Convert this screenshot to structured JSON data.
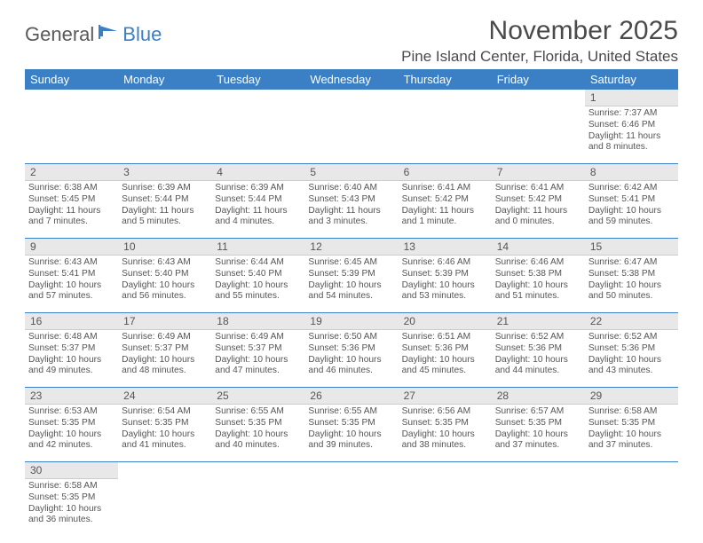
{
  "logo": {
    "text1": "General",
    "text2": "Blue"
  },
  "title": "November 2025",
  "location": "Pine Island Center, Florida, United States",
  "weekdays": [
    "Sunday",
    "Monday",
    "Tuesday",
    "Wednesday",
    "Thursday",
    "Friday",
    "Saturday"
  ],
  "colors": {
    "header_bg": "#3b7fc4",
    "daynum_bg": "#e8e8e8",
    "text": "#4a4a4a"
  },
  "weeks": [
    [
      null,
      null,
      null,
      null,
      null,
      null,
      {
        "n": "1",
        "sr": "Sunrise: 7:37 AM",
        "ss": "Sunset: 6:46 PM",
        "dl1": "Daylight: 11 hours",
        "dl2": "and 8 minutes."
      }
    ],
    [
      {
        "n": "2",
        "sr": "Sunrise: 6:38 AM",
        "ss": "Sunset: 5:45 PM",
        "dl1": "Daylight: 11 hours",
        "dl2": "and 7 minutes."
      },
      {
        "n": "3",
        "sr": "Sunrise: 6:39 AM",
        "ss": "Sunset: 5:44 PM",
        "dl1": "Daylight: 11 hours",
        "dl2": "and 5 minutes."
      },
      {
        "n": "4",
        "sr": "Sunrise: 6:39 AM",
        "ss": "Sunset: 5:44 PM",
        "dl1": "Daylight: 11 hours",
        "dl2": "and 4 minutes."
      },
      {
        "n": "5",
        "sr": "Sunrise: 6:40 AM",
        "ss": "Sunset: 5:43 PM",
        "dl1": "Daylight: 11 hours",
        "dl2": "and 3 minutes."
      },
      {
        "n": "6",
        "sr": "Sunrise: 6:41 AM",
        "ss": "Sunset: 5:42 PM",
        "dl1": "Daylight: 11 hours",
        "dl2": "and 1 minute."
      },
      {
        "n": "7",
        "sr": "Sunrise: 6:41 AM",
        "ss": "Sunset: 5:42 PM",
        "dl1": "Daylight: 11 hours",
        "dl2": "and 0 minutes."
      },
      {
        "n": "8",
        "sr": "Sunrise: 6:42 AM",
        "ss": "Sunset: 5:41 PM",
        "dl1": "Daylight: 10 hours",
        "dl2": "and 59 minutes."
      }
    ],
    [
      {
        "n": "9",
        "sr": "Sunrise: 6:43 AM",
        "ss": "Sunset: 5:41 PM",
        "dl1": "Daylight: 10 hours",
        "dl2": "and 57 minutes."
      },
      {
        "n": "10",
        "sr": "Sunrise: 6:43 AM",
        "ss": "Sunset: 5:40 PM",
        "dl1": "Daylight: 10 hours",
        "dl2": "and 56 minutes."
      },
      {
        "n": "11",
        "sr": "Sunrise: 6:44 AM",
        "ss": "Sunset: 5:40 PM",
        "dl1": "Daylight: 10 hours",
        "dl2": "and 55 minutes."
      },
      {
        "n": "12",
        "sr": "Sunrise: 6:45 AM",
        "ss": "Sunset: 5:39 PM",
        "dl1": "Daylight: 10 hours",
        "dl2": "and 54 minutes."
      },
      {
        "n": "13",
        "sr": "Sunrise: 6:46 AM",
        "ss": "Sunset: 5:39 PM",
        "dl1": "Daylight: 10 hours",
        "dl2": "and 53 minutes."
      },
      {
        "n": "14",
        "sr": "Sunrise: 6:46 AM",
        "ss": "Sunset: 5:38 PM",
        "dl1": "Daylight: 10 hours",
        "dl2": "and 51 minutes."
      },
      {
        "n": "15",
        "sr": "Sunrise: 6:47 AM",
        "ss": "Sunset: 5:38 PM",
        "dl1": "Daylight: 10 hours",
        "dl2": "and 50 minutes."
      }
    ],
    [
      {
        "n": "16",
        "sr": "Sunrise: 6:48 AM",
        "ss": "Sunset: 5:37 PM",
        "dl1": "Daylight: 10 hours",
        "dl2": "and 49 minutes."
      },
      {
        "n": "17",
        "sr": "Sunrise: 6:49 AM",
        "ss": "Sunset: 5:37 PM",
        "dl1": "Daylight: 10 hours",
        "dl2": "and 48 minutes."
      },
      {
        "n": "18",
        "sr": "Sunrise: 6:49 AM",
        "ss": "Sunset: 5:37 PM",
        "dl1": "Daylight: 10 hours",
        "dl2": "and 47 minutes."
      },
      {
        "n": "19",
        "sr": "Sunrise: 6:50 AM",
        "ss": "Sunset: 5:36 PM",
        "dl1": "Daylight: 10 hours",
        "dl2": "and 46 minutes."
      },
      {
        "n": "20",
        "sr": "Sunrise: 6:51 AM",
        "ss": "Sunset: 5:36 PM",
        "dl1": "Daylight: 10 hours",
        "dl2": "and 45 minutes."
      },
      {
        "n": "21",
        "sr": "Sunrise: 6:52 AM",
        "ss": "Sunset: 5:36 PM",
        "dl1": "Daylight: 10 hours",
        "dl2": "and 44 minutes."
      },
      {
        "n": "22",
        "sr": "Sunrise: 6:52 AM",
        "ss": "Sunset: 5:36 PM",
        "dl1": "Daylight: 10 hours",
        "dl2": "and 43 minutes."
      }
    ],
    [
      {
        "n": "23",
        "sr": "Sunrise: 6:53 AM",
        "ss": "Sunset: 5:35 PM",
        "dl1": "Daylight: 10 hours",
        "dl2": "and 42 minutes."
      },
      {
        "n": "24",
        "sr": "Sunrise: 6:54 AM",
        "ss": "Sunset: 5:35 PM",
        "dl1": "Daylight: 10 hours",
        "dl2": "and 41 minutes."
      },
      {
        "n": "25",
        "sr": "Sunrise: 6:55 AM",
        "ss": "Sunset: 5:35 PM",
        "dl1": "Daylight: 10 hours",
        "dl2": "and 40 minutes."
      },
      {
        "n": "26",
        "sr": "Sunrise: 6:55 AM",
        "ss": "Sunset: 5:35 PM",
        "dl1": "Daylight: 10 hours",
        "dl2": "and 39 minutes."
      },
      {
        "n": "27",
        "sr": "Sunrise: 6:56 AM",
        "ss": "Sunset: 5:35 PM",
        "dl1": "Daylight: 10 hours",
        "dl2": "and 38 minutes."
      },
      {
        "n": "28",
        "sr": "Sunrise: 6:57 AM",
        "ss": "Sunset: 5:35 PM",
        "dl1": "Daylight: 10 hours",
        "dl2": "and 37 minutes."
      },
      {
        "n": "29",
        "sr": "Sunrise: 6:58 AM",
        "ss": "Sunset: 5:35 PM",
        "dl1": "Daylight: 10 hours",
        "dl2": "and 37 minutes."
      }
    ],
    [
      {
        "n": "30",
        "sr": "Sunrise: 6:58 AM",
        "ss": "Sunset: 5:35 PM",
        "dl1": "Daylight: 10 hours",
        "dl2": "and 36 minutes."
      },
      null,
      null,
      null,
      null,
      null,
      null
    ]
  ]
}
